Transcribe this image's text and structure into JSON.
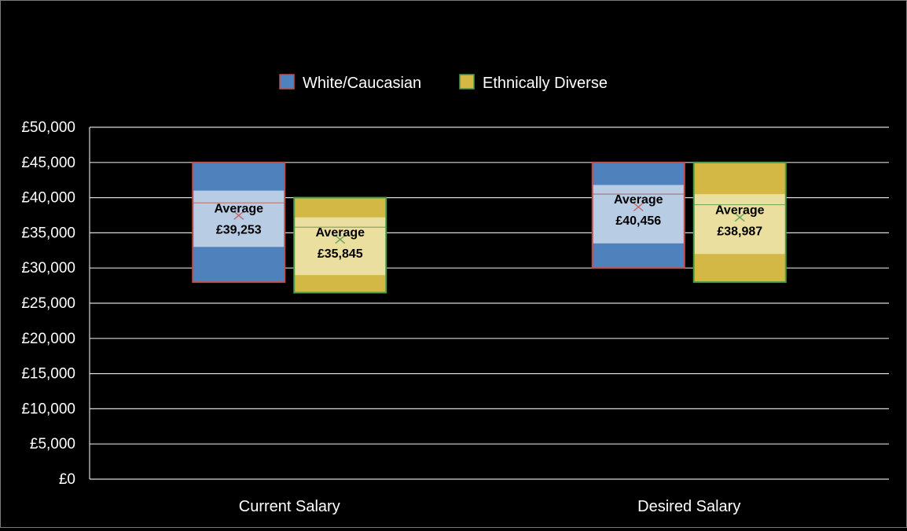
{
  "chart_data": {
    "type": "box",
    "title": "",
    "xlabel": "",
    "ylabel": "",
    "ylim": [
      0,
      50000
    ],
    "y_ticks": [
      "£0",
      "£5,000",
      "£10,000",
      "£15,000",
      "£20,000",
      "£25,000",
      "£30,000",
      "£35,000",
      "£40,000",
      "£45,000",
      "£50,000"
    ],
    "y_tick_values": [
      0,
      5000,
      10000,
      15000,
      20000,
      25000,
      30000,
      35000,
      40000,
      45000,
      50000
    ],
    "grid": true,
    "legend_position": "top",
    "categories": [
      "Current Salary",
      "Desired Salary"
    ],
    "series": [
      {
        "name": "White/Caucasian",
        "fill": "#4f81bd",
        "box_fill": "#b8cce4",
        "border": "#c0504d",
        "values": [
          {
            "min": 28000,
            "q1": 33000,
            "median": 39250,
            "q3": 41000,
            "max": 45000,
            "mean": 39253,
            "label_top": "Average",
            "label_bottom": "£39,253"
          },
          {
            "min": 30000,
            "q1": 33500,
            "median": 40500,
            "q3": 41800,
            "max": 45000,
            "mean": 40456,
            "label_top": "Average",
            "label_bottom": "£40,456"
          }
        ]
      },
      {
        "name": "Ethnically Diverse",
        "fill": "#d4b845",
        "box_fill": "#ebdfa0",
        "border": "#4a9a4a",
        "values": [
          {
            "min": 26500,
            "q1": 29000,
            "median": 35800,
            "q3": 37200,
            "max": 40000,
            "mean": 35845,
            "label_top": "Average",
            "label_bottom": "£35,845"
          },
          {
            "min": 28000,
            "q1": 32000,
            "median": 39000,
            "q3": 40500,
            "max": 45000,
            "mean": 38987,
            "label_top": "Average",
            "label_bottom": "£38,987"
          }
        ]
      }
    ]
  }
}
